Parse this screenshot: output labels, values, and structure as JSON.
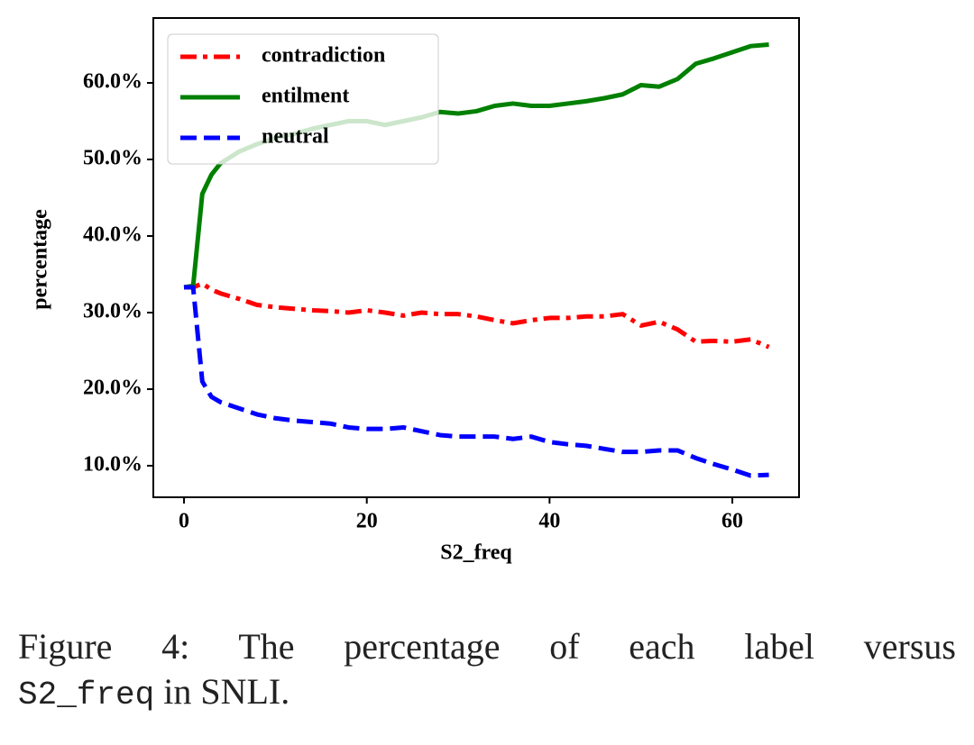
{
  "chart_data": {
    "type": "line",
    "x_label": "S2_freq",
    "y_label": "percentage",
    "x": [
      0,
      1,
      2,
      3,
      4,
      6,
      8,
      10,
      12,
      14,
      16,
      18,
      20,
      22,
      24,
      26,
      28,
      30,
      32,
      34,
      36,
      38,
      40,
      42,
      44,
      46,
      48,
      50,
      52,
      54,
      56,
      58,
      60,
      62,
      64
    ],
    "series": [
      {
        "name": "contradiction",
        "color": "#ff0000",
        "dash": "dashdot",
        "values": [
          33.3,
          33.3,
          33.8,
          33,
          32.5,
          31.8,
          31,
          30.7,
          30.5,
          30.3,
          30.2,
          30,
          30.3,
          30,
          29.6,
          30,
          29.8,
          29.8,
          29.5,
          29,
          28.6,
          29,
          29.3,
          29.3,
          29.5,
          29.5,
          29.8,
          28.3,
          28.8,
          27.8,
          26.2,
          26.3,
          26.2,
          26.5,
          25.5
        ]
      },
      {
        "name": "entilment",
        "color": "#008000",
        "dash": "solid",
        "values": [
          33.3,
          33.5,
          45.5,
          48,
          49.5,
          51,
          52,
          52.8,
          53.3,
          54,
          54.5,
          55,
          55,
          54.5,
          55,
          55.5,
          56.2,
          56,
          56.3,
          57,
          57.3,
          57,
          57,
          57.3,
          57.6,
          58,
          58.5,
          59.7,
          59.5,
          60.5,
          62.5,
          63.2,
          64,
          64.8,
          65
        ]
      },
      {
        "name": "neutral",
        "color": "#0000ff",
        "dash": "dashed",
        "values": [
          33.3,
          33.3,
          21,
          19,
          18.3,
          17.5,
          16.7,
          16.2,
          15.9,
          15.7,
          15.5,
          15,
          14.8,
          14.8,
          15,
          14.5,
          14,
          13.8,
          13.8,
          13.8,
          13.5,
          13.8,
          13.1,
          12.8,
          12.6,
          12.2,
          11.8,
          11.8,
          12,
          12,
          11,
          10.2,
          9.5,
          8.7,
          8.8
        ]
      }
    ],
    "xlim": [
      -3.36,
      67.3
    ],
    "ylim": [
      5.88,
      68.47
    ],
    "xticks": [
      0,
      20,
      40,
      60
    ],
    "yticks": [
      {
        "value": 10,
        "label": "10.0%"
      },
      {
        "value": 20,
        "label": "20.0%"
      },
      {
        "value": 30,
        "label": "30.0%"
      },
      {
        "value": 40,
        "label": "40.0%"
      },
      {
        "value": 50,
        "label": "50.0%"
      },
      {
        "value": 60,
        "label": "60.0%"
      }
    ],
    "legend": "upper left",
    "grid": false
  },
  "caption": {
    "line1": "Figure 4:  The percentage of each label versus",
    "code": "S2_freq",
    "rest": "in SNLI."
  }
}
